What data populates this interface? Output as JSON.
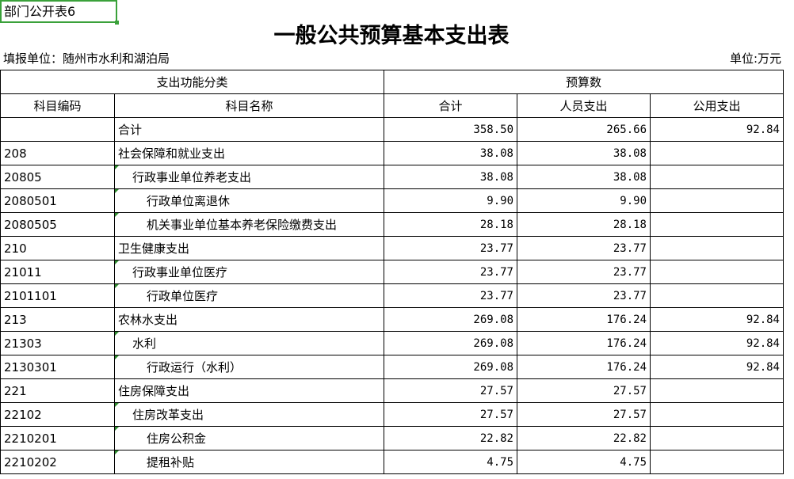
{
  "sheet_label": "部门公开表6",
  "title": "一般公共预算基本支出表",
  "org": "填报单位：随州市水利和湖泊局",
  "unit": "单位:万元",
  "headers": {
    "group1": "支出功能分类",
    "group2": "预算数",
    "code": "科目编码",
    "name": "科目名称",
    "total": "合计",
    "personnel": "人员支出",
    "public": "公用支出"
  },
  "rows": [
    {
      "code": "",
      "name": "合计",
      "level": 0,
      "total": "358.50",
      "personnel": "265.66",
      "public": "92.84"
    },
    {
      "code": "208",
      "name": "社会保障和就业支出",
      "level": 0,
      "total": "38.08",
      "personnel": "38.08",
      "public": ""
    },
    {
      "code": "20805",
      "name": "行政事业单位养老支出",
      "level": 1,
      "total": "38.08",
      "personnel": "38.08",
      "public": ""
    },
    {
      "code": "2080501",
      "name": "行政单位离退休",
      "level": 2,
      "total": "9.90",
      "personnel": "9.90",
      "public": ""
    },
    {
      "code": "2080505",
      "name": "机关事业单位基本养老保险缴费支出",
      "level": 2,
      "total": "28.18",
      "personnel": "28.18",
      "public": ""
    },
    {
      "code": "210",
      "name": "卫生健康支出",
      "level": 0,
      "total": "23.77",
      "personnel": "23.77",
      "public": ""
    },
    {
      "code": "21011",
      "name": "行政事业单位医疗",
      "level": 1,
      "total": "23.77",
      "personnel": "23.77",
      "public": ""
    },
    {
      "code": "2101101",
      "name": "行政单位医疗",
      "level": 2,
      "total": "23.77",
      "personnel": "23.77",
      "public": ""
    },
    {
      "code": "213",
      "name": "农林水支出",
      "level": 0,
      "total": "269.08",
      "personnel": "176.24",
      "public": "92.84"
    },
    {
      "code": "21303",
      "name": "水利",
      "level": 1,
      "total": "269.08",
      "personnel": "176.24",
      "public": "92.84"
    },
    {
      "code": "2130301",
      "name": "行政运行（水利）",
      "level": 2,
      "total": "269.08",
      "personnel": "176.24",
      "public": "92.84"
    },
    {
      "code": "221",
      "name": "住房保障支出",
      "level": 0,
      "total": "27.57",
      "personnel": "27.57",
      "public": ""
    },
    {
      "code": "22102",
      "name": "住房改革支出",
      "level": 1,
      "total": "27.57",
      "personnel": "27.57",
      "public": ""
    },
    {
      "code": "2210201",
      "name": "住房公积金",
      "level": 2,
      "total": "22.82",
      "personnel": "22.82",
      "public": ""
    },
    {
      "code": "2210202",
      "name": "提租补贴",
      "level": 2,
      "total": "4.75",
      "personnel": "4.75",
      "public": ""
    }
  ]
}
